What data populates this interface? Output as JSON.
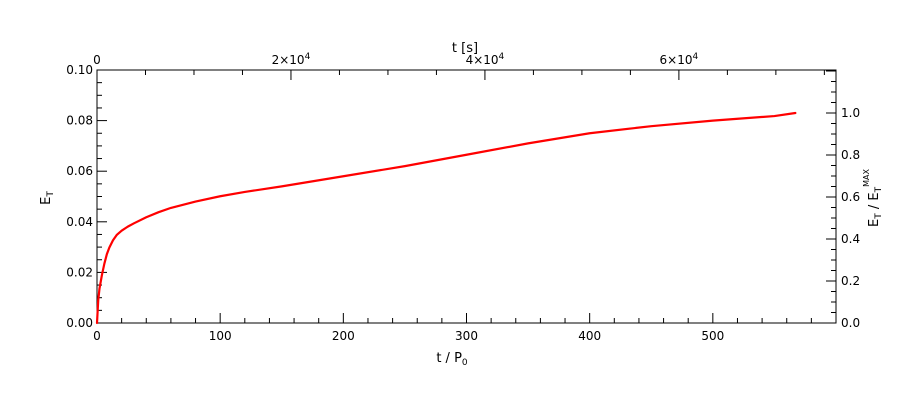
{
  "chart_data": {
    "type": "line",
    "title": "",
    "xlabel": "t / P",
    "xlabel_sub": "0",
    "x_top_label": "t [s]",
    "ylabel": "E",
    "ylabel_sub": "T",
    "y2label": "E",
    "y2label_sub": "T",
    "y2label_sep": " / E",
    "y2label_sub2": "T",
    "y2label_sup2": "MAX",
    "xlim": [
      0,
      600
    ],
    "ylim": [
      0,
      0.1
    ],
    "x_top_lim": [
      0,
      76200
    ],
    "y2lim": [
      0,
      1.2048
    ],
    "x_ticks": [
      "0",
      "100",
      "200",
      "300",
      "400",
      "500"
    ],
    "x_tick_values": [
      0,
      100,
      200,
      300,
      400,
      500
    ],
    "x_top_ticks": [
      {
        "value": 0,
        "mantissa": "0",
        "exponent": ""
      },
      {
        "value": 20000,
        "mantissa": "2×10",
        "exponent": "4"
      },
      {
        "value": 40000,
        "mantissa": "4×10",
        "exponent": "4"
      },
      {
        "value": 60000,
        "mantissa": "6×10",
        "exponent": "4"
      }
    ],
    "y_ticks": [
      "0.00",
      "0.02",
      "0.04",
      "0.06",
      "0.08",
      "0.10"
    ],
    "y_tick_values": [
      0,
      0.02,
      0.04,
      0.06,
      0.08,
      0.1
    ],
    "y2_ticks": [
      "0.0",
      "0.2",
      "0.4",
      "0.6",
      "0.8",
      "1.0"
    ],
    "y2_tick_values": [
      0,
      0.2,
      0.4,
      0.6,
      0.8,
      1.0
    ],
    "grid": false,
    "series": [
      {
        "color": "#ff0000",
        "x": [
          0,
          1,
          2,
          4,
          6,
          8,
          10,
          13,
          16,
          20,
          25,
          30,
          40,
          50,
          60,
          80,
          100,
          120,
          150,
          200,
          250,
          300,
          350,
          400,
          450,
          500,
          550,
          567
        ],
        "y": [
          0.0,
          0.009,
          0.0135,
          0.019,
          0.0235,
          0.0272,
          0.0298,
          0.0327,
          0.0348,
          0.0365,
          0.0381,
          0.0394,
          0.0418,
          0.0438,
          0.0455,
          0.048,
          0.0501,
          0.0518,
          0.054,
          0.058,
          0.062,
          0.0665,
          0.071,
          0.075,
          0.0778,
          0.08,
          0.0818,
          0.083
        ]
      }
    ]
  }
}
